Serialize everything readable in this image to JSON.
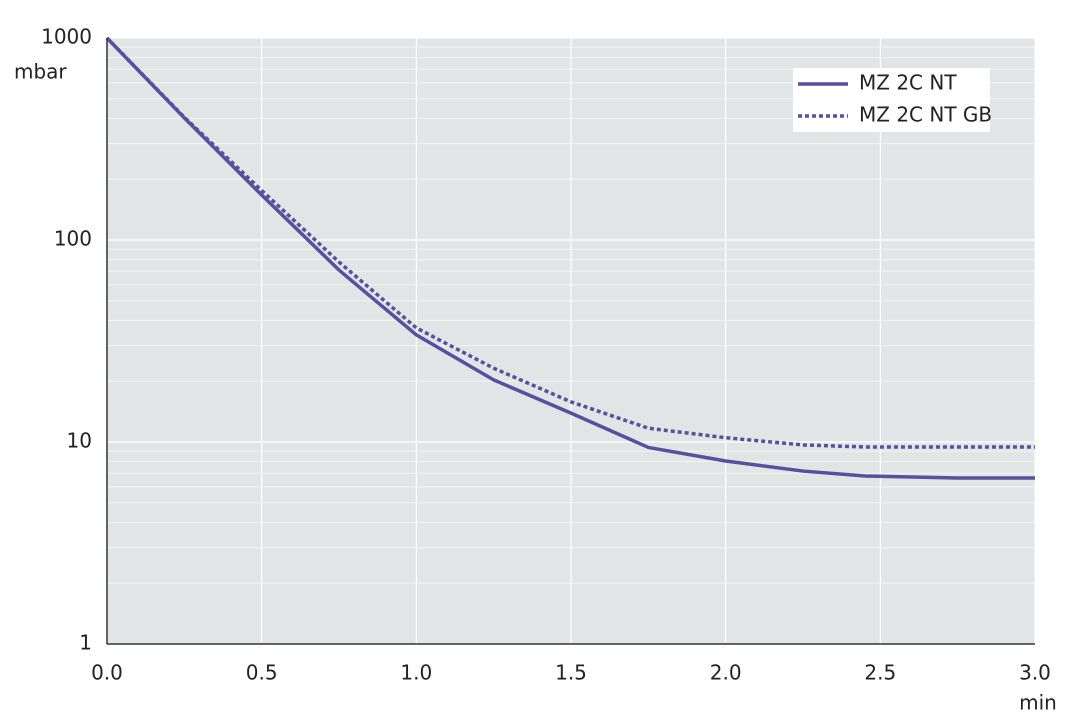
{
  "chart_data": {
    "type": "line",
    "y_label": "mbar",
    "x_label": "min",
    "x": [
      0,
      0.25,
      0.5,
      0.75,
      1.0,
      1.25,
      1.5,
      1.75,
      2.0,
      2.25,
      2.45,
      2.75,
      3.0
    ],
    "series": [
      {
        "name": "MZ 2C NT",
        "color": "#5a4f9e",
        "dash": "solid",
        "values": [
          1000,
          402,
          167,
          71,
          33.9,
          20.3,
          13.9,
          9.4,
          8.05,
          7.18,
          6.79,
          6.63,
          6.63
        ]
      },
      {
        "name": "MZ 2C NT GB",
        "color": "#5a4f9e",
        "dash": "dotted",
        "values": [
          1000,
          405,
          176,
          77.8,
          36.7,
          23.2,
          15.8,
          11.7,
          10.5,
          9.67,
          9.45,
          9.45,
          9.45
        ]
      }
    ],
    "xlim": [
      0,
      3
    ],
    "ylim": [
      1,
      1000
    ],
    "log_y": true,
    "xticks": [
      {
        "value": 0,
        "label": "0.0"
      },
      0.5,
      {
        "value": 1,
        "label": "1.0"
      },
      1.5,
      {
        "value": 2,
        "label": "2.0"
      },
      2.5,
      {
        "value": 3,
        "label": "3.0"
      }
    ],
    "yticks": [
      1,
      10,
      100,
      1000
    ],
    "grid": true,
    "legend": "upper right"
  }
}
